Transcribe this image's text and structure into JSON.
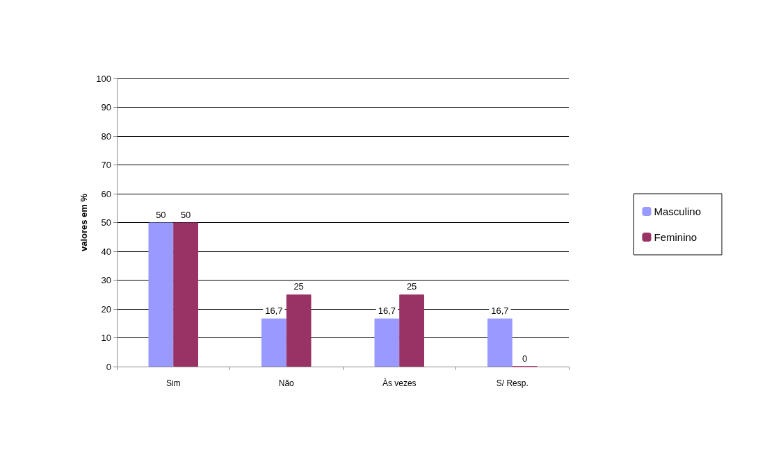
{
  "chart_data": {
    "type": "bar",
    "ylabel": "valores em %",
    "categories": [
      "Sim",
      "Não",
      "Às vezes",
      "S/ Resp."
    ],
    "series": [
      {
        "name": "Masculino",
        "color": "#9999ff",
        "values": [
          50,
          16.7,
          16.7,
          16.7
        ],
        "value_labels": [
          "50",
          "16,7",
          "16,7",
          "16,7"
        ]
      },
      {
        "name": "Feminino",
        "color": "#993366",
        "values": [
          50,
          25,
          25,
          0
        ],
        "value_labels": [
          "50",
          "25",
          "25",
          "0"
        ]
      }
    ],
    "ylim": [
      0,
      100
    ],
    "yticks": [
      0,
      10,
      20,
      30,
      40,
      50,
      60,
      70,
      80,
      90,
      100
    ],
    "grid": "y",
    "legend": "right"
  }
}
